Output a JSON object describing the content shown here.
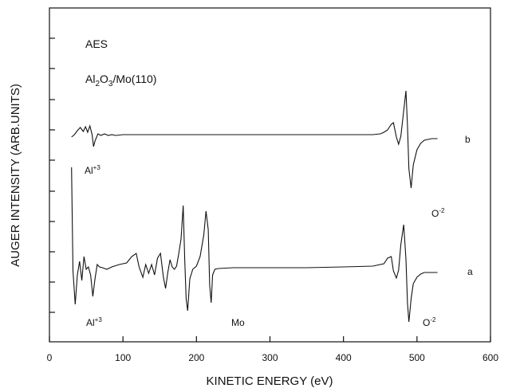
{
  "chart_data": {
    "type": "line",
    "title": "AES",
    "subtitle_parts": [
      "Al",
      "2",
      "O",
      "3",
      "/Mo(110)"
    ],
    "xlabel": "KINETIC ENERGY (eV)",
    "ylabel": "AUGER INTENSITY (ARB.UNITS)",
    "xlim": [
      0,
      600
    ],
    "x_ticks": [
      "0",
      "100",
      "200",
      "300",
      "400",
      "500",
      "600"
    ],
    "series": [
      {
        "name": "b",
        "x": [
          30,
          34,
          38,
          42,
          46,
          49,
          52,
          55,
          58,
          60,
          62,
          66,
          70,
          75,
          80,
          85,
          90,
          100,
          150,
          200,
          250,
          300,
          350,
          400,
          440,
          450,
          455,
          460,
          465,
          468,
          472,
          475,
          478,
          482,
          485,
          487,
          489,
          492,
          495,
          500,
          505,
          510,
          520,
          528
        ],
        "y": [
          0,
          3,
          8,
          12,
          7,
          13,
          6,
          14,
          3,
          -12,
          -5,
          4,
          2,
          4,
          2,
          3,
          2,
          3,
          3,
          3,
          3,
          3,
          3,
          3,
          3,
          4,
          6,
          9,
          16,
          18,
          0,
          -9,
          1,
          33,
          58,
          15,
          -40,
          -64,
          -35,
          -16,
          -8,
          -4,
          -2,
          -2
        ]
      },
      {
        "name": "a",
        "x": [
          30,
          32,
          35,
          38,
          41,
          44,
          47,
          50,
          53,
          56,
          59,
          62,
          65,
          68,
          72,
          78,
          85,
          95,
          105,
          112,
          118,
          122,
          127,
          131,
          135,
          139,
          143,
          147,
          151,
          155,
          158,
          161,
          164,
          167,
          170,
          173,
          176,
          179,
          182,
          184,
          186,
          188,
          191,
          195,
          200,
          205,
          210,
          213,
          216,
          218,
          220,
          222,
          225,
          230,
          250,
          300,
          350,
          400,
          440,
          455,
          460,
          465,
          468,
          472,
          475,
          478,
          482,
          485,
          487,
          489,
          492,
          495,
          500,
          505,
          510,
          520,
          528
        ],
        "y": [
          130,
          0,
          -42,
          -5,
          12,
          -12,
          18,
          2,
          5,
          -5,
          -32,
          -10,
          8,
          5,
          4,
          2,
          5,
          8,
          10,
          18,
          22,
          5,
          -8,
          8,
          -3,
          8,
          -5,
          16,
          22,
          -8,
          -22,
          -2,
          14,
          5,
          2,
          6,
          22,
          40,
          82,
          15,
          -35,
          -50,
          -10,
          2,
          6,
          18,
          45,
          75,
          52,
          -18,
          -40,
          -5,
          2,
          3,
          4,
          4,
          4,
          5,
          6,
          9,
          16,
          18,
          0,
          -9,
          1,
          33,
          58,
          15,
          -40,
          -64,
          -35,
          -16,
          -8,
          -4,
          -2,
          -2,
          -2
        ]
      }
    ],
    "annotations": {
      "series_b_label": "b",
      "series_a_label": "a",
      "al_b": {
        "base": "Al",
        "sup": "+3"
      },
      "o_b": {
        "base": "O",
        "sup": "-2"
      },
      "al_a": {
        "base": "Al",
        "sup": "+3"
      },
      "mo_a": "Mo",
      "o_a": {
        "base": "O",
        "sup": "-2"
      }
    }
  }
}
